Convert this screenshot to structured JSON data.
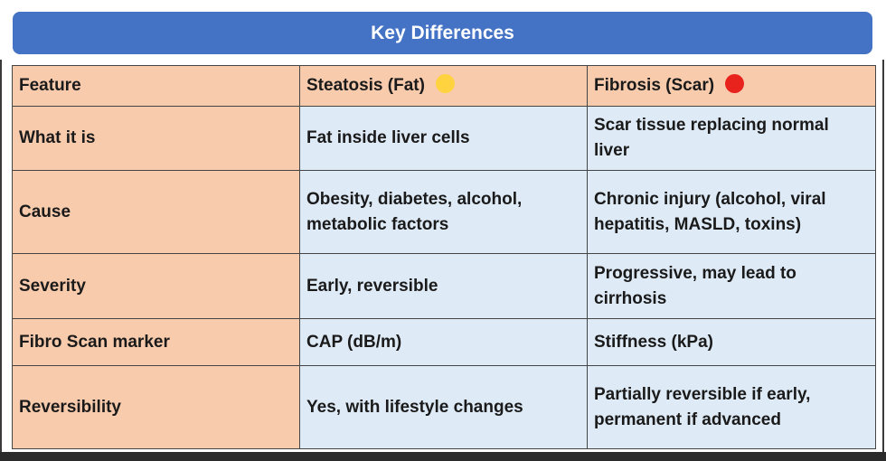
{
  "title": "Key Differences",
  "table": {
    "headers": [
      {
        "label": "Feature"
      },
      {
        "label": "Steatosis (Fat)",
        "dot_color": "#FFD23F"
      },
      {
        "label": "Fibrosis (Scar)",
        "dot_color": "#E8231E"
      }
    ],
    "rows": [
      {
        "feature": "What it is",
        "steatosis": "Fat inside liver cells",
        "fibrosis": "Scar tissue replacing normal liver"
      },
      {
        "feature": "Cause",
        "steatosis": "Obesity, diabetes, alcohol, metabolic factors",
        "fibrosis": "Chronic injury (alcohol, viral hepatitis, MASLD, toxins)"
      },
      {
        "feature": "Severity",
        "steatosis": "Early, reversible",
        "fibrosis": "Progressive, may lead to cirrhosis"
      },
      {
        "feature": "Fibro Scan marker",
        "steatosis": "CAP (dB/m)",
        "fibrosis": "Stiffness (kPa)"
      },
      {
        "feature": "Reversibility",
        "steatosis": "Yes, with lifestyle changes",
        "fibrosis": "Partially reversible if early, permanent if advanced"
      }
    ]
  },
  "colors": {
    "title_bg": "#4472C4",
    "feature_bg": "#F8CBAD",
    "value_bg": "#DEEAF6"
  }
}
